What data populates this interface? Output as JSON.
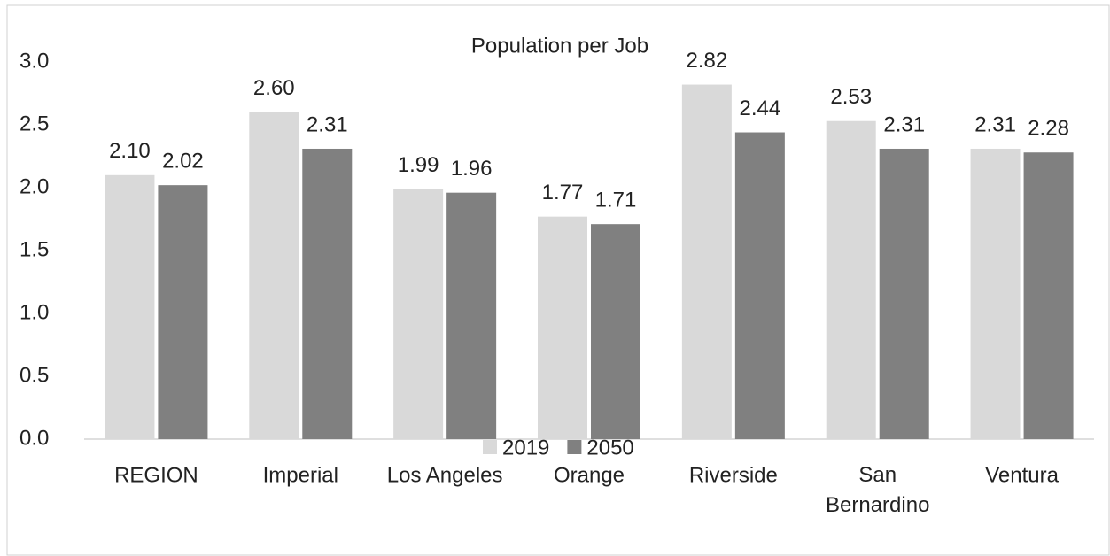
{
  "chart_data": {
    "type": "bar",
    "title": "Population per Job",
    "categories": [
      "REGION",
      "Imperial",
      "Los Angeles",
      "Orange",
      "Riverside",
      "San Bernardino",
      "Ventura"
    ],
    "series": [
      {
        "name": "2019",
        "color": "#d9d9d9",
        "values": [
          2.1,
          2.6,
          1.99,
          1.77,
          2.82,
          2.53,
          2.31
        ],
        "value_labels": [
          "2.10",
          "2.60",
          "1.99",
          "1.77",
          "2.82",
          "2.53",
          "2.31"
        ]
      },
      {
        "name": "2050",
        "color": "#808080",
        "values": [
          2.02,
          2.31,
          1.96,
          1.71,
          2.44,
          2.31,
          2.28
        ],
        "value_labels": [
          "2.02",
          "2.31",
          "1.96",
          "1.71",
          "2.44",
          "2.31",
          "2.28"
        ]
      }
    ],
    "ylim": [
      0,
      3
    ],
    "yticks": [
      {
        "value": 0,
        "label": "0.0"
      },
      {
        "value": 0.5,
        "label": "0.5"
      },
      {
        "value": 1,
        "label": "1.0"
      },
      {
        "value": 1.5,
        "label": "1.5"
      },
      {
        "value": 2,
        "label": "2.0"
      },
      {
        "value": 2.5,
        "label": "2.5"
      },
      {
        "value": 3,
        "label": "3.0"
      }
    ],
    "grid": false,
    "legend": "bottom"
  }
}
